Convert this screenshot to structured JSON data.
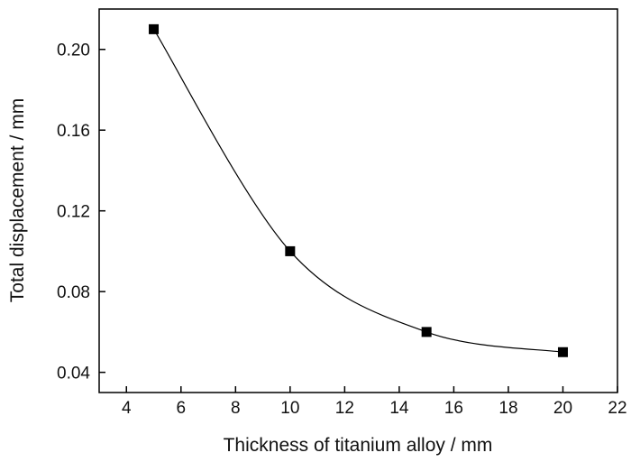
{
  "chart_data": {
    "type": "scatter",
    "title": "",
    "xlabel": "Thickness of titanium alloy / mm",
    "ylabel": "Total displacement / mm",
    "xlim": [
      3,
      22
    ],
    "ylim": [
      0.03,
      0.22
    ],
    "xticks": [
      4,
      6,
      8,
      10,
      12,
      14,
      16,
      18,
      20,
      22
    ],
    "xtick_labels": [
      "4",
      "6",
      "8",
      "10",
      "12",
      "14",
      "16",
      "18",
      "20",
      "22"
    ],
    "yticks": [
      0.04,
      0.08,
      0.12,
      0.16,
      0.2
    ],
    "ytick_labels": [
      "0.04",
      "0.08",
      "0.12",
      "0.16",
      "0.20"
    ],
    "grid": false,
    "legend": "none",
    "series": [
      {
        "marker": "square",
        "color": "#000000",
        "fit_line": "smooth spline",
        "x": [
          5,
          10,
          15,
          20
        ],
        "y": [
          0.21,
          0.1,
          0.06,
          0.05
        ]
      }
    ]
  }
}
